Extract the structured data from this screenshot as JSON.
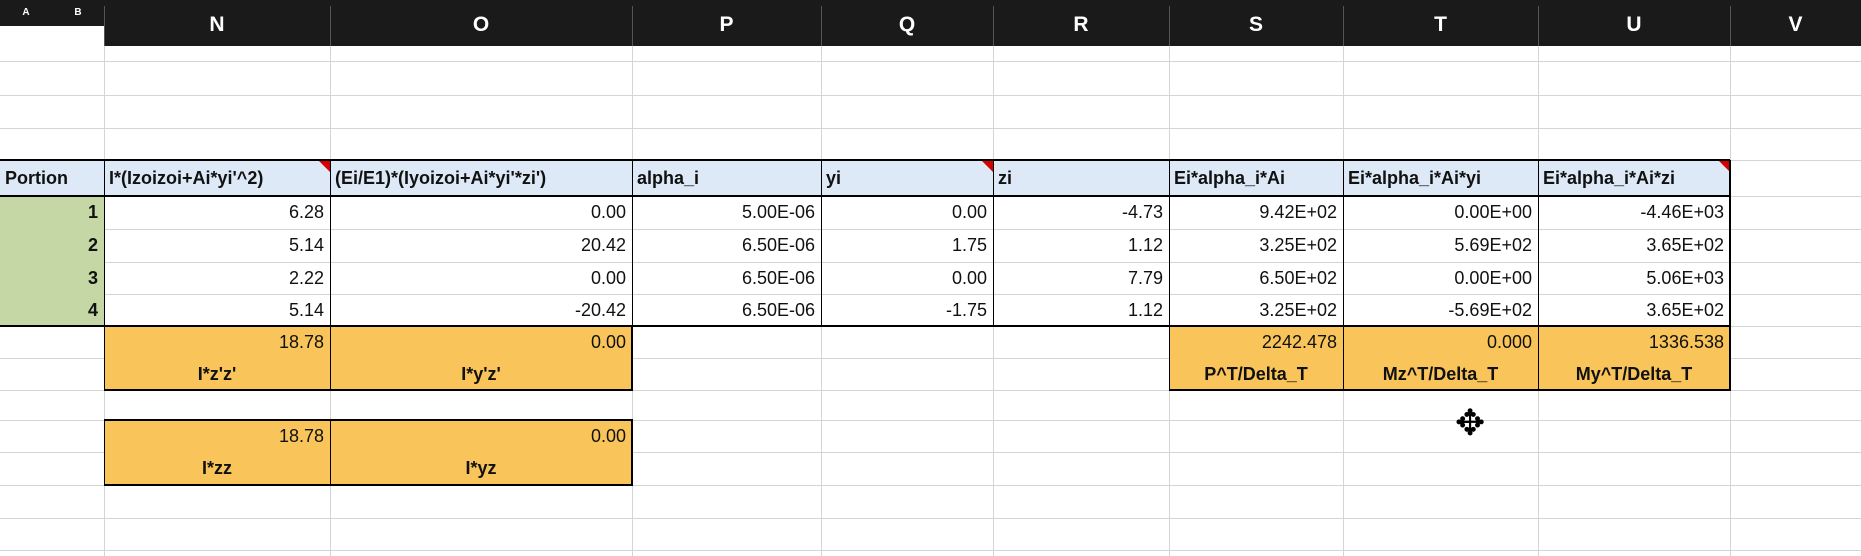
{
  "columns": {
    "a": "A",
    "b": "B",
    "n": "N",
    "o": "O",
    "p": "P",
    "q": "Q",
    "r": "R",
    "s": "S",
    "t": "T",
    "u": "U",
    "v": "V"
  },
  "headers": {
    "portion": "Portion",
    "n": "I*(Izoizoi+Ai*yi'^2)",
    "o": "(Ei/E1)*(Iyoizoi+Ai*yi'*zi')",
    "p": "alpha_i",
    "q": "yi",
    "r": "zi",
    "s": "Ei*alpha_i*Ai",
    "t": "Ei*alpha_i*Ai*yi",
    "u": "Ei*alpha_i*Ai*zi"
  },
  "rows": [
    {
      "portion": "1",
      "n": "6.28",
      "o": "0.00",
      "p": "5.00E-06",
      "q": "0.00",
      "r": "-4.73",
      "s": "9.42E+02",
      "t": "0.00E+00",
      "u": "-4.46E+03"
    },
    {
      "portion": "2",
      "n": "5.14",
      "o": "20.42",
      "p": "6.50E-06",
      "q": "1.75",
      "r": "1.12",
      "s": "3.25E+02",
      "t": "5.69E+02",
      "u": "3.65E+02"
    },
    {
      "portion": "3",
      "n": "2.22",
      "o": "0.00",
      "p": "6.50E-06",
      "q": "0.00",
      "r": "7.79",
      "s": "6.50E+02",
      "t": "0.00E+00",
      "u": "5.06E+03"
    },
    {
      "portion": "4",
      "n": "5.14",
      "o": "-20.42",
      "p": "6.50E-06",
      "q": "-1.75",
      "r": "1.12",
      "s": "3.25E+02",
      "t": "-5.69E+02",
      "u": "3.65E+02"
    }
  ],
  "totals": {
    "izz_prime": {
      "value": "18.78",
      "label": "I*z'z'"
    },
    "iyz_prime": {
      "value": "0.00",
      "label": "I*y'z'"
    },
    "p_t": {
      "value": "2242.478",
      "label": "P^T/Delta_T"
    },
    "mz_t": {
      "value": "0.000",
      "label": "Mz^T/Delta_T"
    },
    "my_t": {
      "value": "1336.538",
      "label": "My^T/Delta_T"
    },
    "izz": {
      "value": "18.78",
      "label": "I*zz"
    },
    "iyz": {
      "value": "0.00",
      "label": "I*yz"
    }
  },
  "colors": {
    "header_fill": "#dde9f6",
    "total_fill": "#f9c55a",
    "portion_fill": "#c4d7a4",
    "comment_flag": "#d40000"
  },
  "icons": {
    "cursor": "move-cursor-icon"
  }
}
